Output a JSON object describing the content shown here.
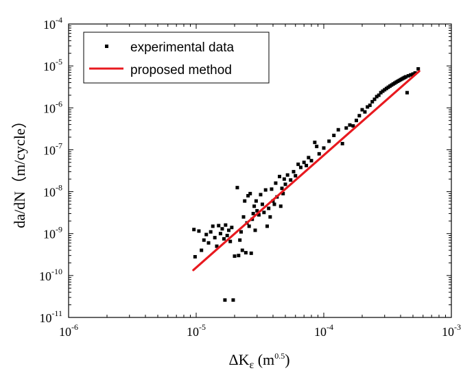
{
  "chart_data": {
    "type": "scatter",
    "xscale": "log",
    "yscale": "log",
    "xlim": [
      1e-06,
      0.001
    ],
    "ylim": [
      1e-11,
      0.0001
    ],
    "x_ticks": [
      {
        "value": 1e-06,
        "base": "10",
        "exp": "-6"
      },
      {
        "value": 1e-05,
        "base": "10",
        "exp": "-5"
      },
      {
        "value": 0.0001,
        "base": "10",
        "exp": "-4"
      },
      {
        "value": 0.001,
        "base": "10",
        "exp": "-3"
      }
    ],
    "y_ticks": [
      {
        "value": 1e-11,
        "base": "10",
        "exp": "-11"
      },
      {
        "value": 1e-10,
        "base": "10",
        "exp": "-10"
      },
      {
        "value": 1e-09,
        "base": "10",
        "exp": "-9"
      },
      {
        "value": 1e-08,
        "base": "10",
        "exp": "-8"
      },
      {
        "value": 1e-07,
        "base": "10",
        "exp": "-7"
      },
      {
        "value": 1e-06,
        "base": "10",
        "exp": "-6"
      },
      {
        "value": 1e-05,
        "base": "10",
        "exp": "-5"
      },
      {
        "value": 0.0001,
        "base": "10",
        "exp": "-4"
      }
    ],
    "xlabel": {
      "main": "ΔK",
      "sub": "ε",
      "unit_open": " (m",
      "unit_exp": "0.5",
      "unit_close": ")"
    },
    "ylabel": "da/dN（m/cycle）",
    "grid": false,
    "legend_position": "top-left",
    "series": [
      {
        "name": "experimental data",
        "kind": "scatter",
        "color": "#000000",
        "points": [
          [
            9.6e-06,
            1.25e-09
          ],
          [
            9.8e-06,
            2.8e-10
          ],
          [
            1.05e-05,
            1.15e-09
          ],
          [
            1.1e-05,
            4e-10
          ],
          [
            1.15e-05,
            7e-10
          ],
          [
            1.2e-05,
            9.5e-10
          ],
          [
            1.25e-05,
            6e-10
          ],
          [
            1.3e-05,
            1.1e-09
          ],
          [
            1.35e-05,
            1.5e-09
          ],
          [
            1.4e-05,
            8e-10
          ],
          [
            1.45e-05,
            5e-10
          ],
          [
            1.5e-05,
            1.55e-09
          ],
          [
            1.55e-05,
            1e-09
          ],
          [
            1.6e-05,
            1.3e-09
          ],
          [
            1.65e-05,
            7.5e-10
          ],
          [
            1.7e-05,
            1.6e-09
          ],
          [
            1.75e-05,
            9e-10
          ],
          [
            1.8e-05,
            1.2e-09
          ],
          [
            1.85e-05,
            6.5e-10
          ],
          [
            1.9e-05,
            1.4e-09
          ],
          [
            1.68e-05,
            2.6e-11
          ],
          [
            1.95e-05,
            2.6e-11
          ],
          [
            2e-05,
            2.9e-10
          ],
          [
            2.1e-05,
            1.25e-08
          ],
          [
            2.15e-05,
            3e-10
          ],
          [
            2.2e-05,
            7e-10
          ],
          [
            2.25e-05,
            1.1e-09
          ],
          [
            2.3e-05,
            4e-10
          ],
          [
            2.35e-05,
            2.5e-09
          ],
          [
            2.4e-05,
            6e-09
          ],
          [
            2.45e-05,
            3.5e-10
          ],
          [
            2.5e-05,
            1.8e-09
          ],
          [
            2.55e-05,
            8e-09
          ],
          [
            2.6e-05,
            1.5e-09
          ],
          [
            2.65e-05,
            9e-09
          ],
          [
            2.7e-05,
            3.4e-10
          ],
          [
            2.75e-05,
            2.2e-09
          ],
          [
            2.8e-05,
            3e-09
          ],
          [
            2.85e-05,
            4.5e-09
          ],
          [
            2.9e-05,
            1.2e-09
          ],
          [
            2.95e-05,
            6e-09
          ],
          [
            3e-05,
            3.5e-09
          ],
          [
            3.1e-05,
            2.8e-09
          ],
          [
            3.2e-05,
            8.5e-09
          ],
          [
            3.3e-05,
            5e-09
          ],
          [
            3.4e-05,
            3.2e-09
          ],
          [
            3.5e-05,
            1.1e-08
          ],
          [
            3.6e-05,
            1.5e-09
          ],
          [
            3.7e-05,
            4e-09
          ],
          [
            3.8e-05,
            2.5e-09
          ],
          [
            3.9e-05,
            1.15e-08
          ],
          [
            4e-05,
            6e-09
          ],
          [
            4.1e-05,
            5e-09
          ],
          [
            4.2e-05,
            1.6e-08
          ],
          [
            4.3e-05,
            7.5e-09
          ],
          [
            4.5e-05,
            2.3e-08
          ],
          [
            4.6e-05,
            4.5e-09
          ],
          [
            4.7e-05,
            1.2e-08
          ],
          [
            4.8e-05,
            9e-09
          ],
          [
            4.9e-05,
            2e-08
          ],
          [
            5e-05,
            1.5e-08
          ],
          [
            5.2e-05,
            2.5e-08
          ],
          [
            5.5e-05,
            1.9e-08
          ],
          [
            5.8e-05,
            3e-08
          ],
          [
            6e-05,
            2.4e-08
          ],
          [
            6.3e-05,
            4.5e-08
          ],
          [
            6.6e-05,
            3.8e-08
          ],
          [
            7e-05,
            5e-08
          ],
          [
            7.3e-05,
            4.2e-08
          ],
          [
            7.6e-05,
            6.5e-08
          ],
          [
            8e-05,
            5.5e-08
          ],
          [
            8.5e-05,
            1.5e-07
          ],
          [
            8.8e-05,
            1.2e-07
          ],
          [
            9.2e-05,
            8e-08
          ],
          [
            0.0001,
            1.1e-07
          ],
          [
            0.00011,
            1.6e-07
          ],
          [
            0.00012,
            2.2e-07
          ],
          [
            0.00013,
            3e-07
          ],
          [
            0.00014,
            1.4e-07
          ],
          [
            0.00015,
            3.3e-07
          ],
          [
            0.00016,
            3.9e-07
          ],
          [
            0.00017,
            3.7e-07
          ],
          [
            0.00018,
            5e-07
          ],
          [
            0.00019,
            6.5e-07
          ],
          [
            0.0002,
            9e-07
          ],
          [
            0.00021,
            8e-07
          ],
          [
            0.00022,
            1.05e-06
          ],
          [
            0.00023,
            1.15e-06
          ],
          [
            0.00024,
            1.4e-06
          ],
          [
            0.00025,
            1.6e-06
          ],
          [
            0.00026,
            1.85e-06
          ],
          [
            0.00027,
            2e-06
          ],
          [
            0.00028,
            2.3e-06
          ],
          [
            0.00029,
            2.5e-06
          ],
          [
            0.0003,
            2.7e-06
          ],
          [
            0.00031,
            2.9e-06
          ],
          [
            0.00032,
            3.1e-06
          ],
          [
            0.00033,
            3.3e-06
          ],
          [
            0.00034,
            3.5e-06
          ],
          [
            0.00035,
            3.7e-06
          ],
          [
            0.00036,
            3.9e-06
          ],
          [
            0.00037,
            4.1e-06
          ],
          [
            0.00038,
            4.3e-06
          ],
          [
            0.00039,
            4.5e-06
          ],
          [
            0.0004,
            4.7e-06
          ],
          [
            0.00041,
            4.9e-06
          ],
          [
            0.00042,
            5.1e-06
          ],
          [
            0.00043,
            5.3e-06
          ],
          [
            0.00044,
            5.5e-06
          ],
          [
            0.00045,
            2.3e-06
          ],
          [
            0.00046,
            5.8e-06
          ],
          [
            0.00048,
            6.1e-06
          ],
          [
            0.0005,
            6.4e-06
          ],
          [
            0.00052,
            6.8e-06
          ],
          [
            0.00055,
            8.5e-06
          ]
        ]
      },
      {
        "name": "proposed method",
        "kind": "line",
        "color": "#e8191f",
        "points": [
          [
            9.5e-06,
            1.35e-10
          ],
          [
            0.00056,
            7.5e-06
          ]
        ]
      }
    ]
  }
}
